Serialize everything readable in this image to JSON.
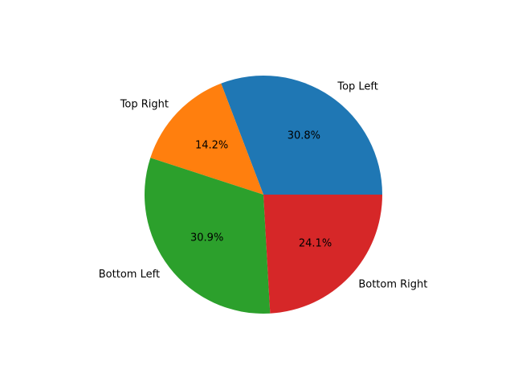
{
  "chart_data": {
    "type": "pie",
    "title": "",
    "labels": [
      "Top Left",
      "Top Right",
      "Bottom Left",
      "Bottom Right"
    ],
    "values": [
      30.8,
      14.2,
      30.9,
      24.1
    ],
    "percent_labels": [
      "30.8%",
      "14.2%",
      "30.9%",
      "24.1%"
    ],
    "colors": [
      "#1f77b4",
      "#ff7f0e",
      "#2ca02c",
      "#d62728"
    ],
    "start_angle_deg": 0,
    "direction": "counterclockwise",
    "legend": "none"
  }
}
